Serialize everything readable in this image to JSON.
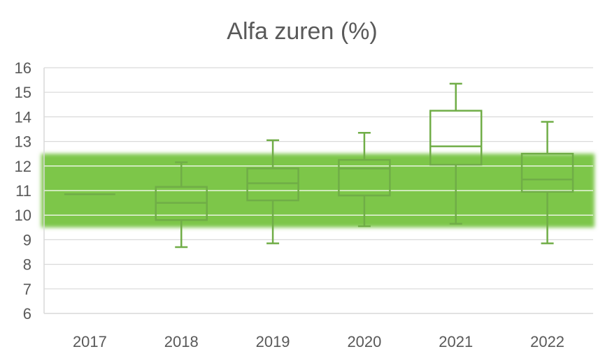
{
  "chart_data": {
    "type": "box",
    "title": "Alfa zuren (%)",
    "xlabel": "",
    "ylabel": "",
    "ylim": [
      6,
      16
    ],
    "yticks": [
      6,
      7,
      8,
      9,
      10,
      11,
      12,
      13,
      14,
      15,
      16
    ],
    "grid": true,
    "reference_band": {
      "low": 9.5,
      "high": 12.5,
      "color": "#7dc64a"
    },
    "box_color": "#70ad47",
    "categories": [
      "2017",
      "2018",
      "2019",
      "2020",
      "2021",
      "2022"
    ],
    "boxes": [
      {
        "min": 10.85,
        "q1": 10.85,
        "median": 10.85,
        "q3": 10.85,
        "max": 10.85
      },
      {
        "min": 8.7,
        "q1": 9.8,
        "median": 10.5,
        "q3": 11.15,
        "max": 12.15
      },
      {
        "min": 8.85,
        "q1": 10.6,
        "median": 11.3,
        "q3": 11.9,
        "max": 13.05
      },
      {
        "min": 9.55,
        "q1": 10.8,
        "median": 11.9,
        "q3": 12.25,
        "max": 13.35
      },
      {
        "min": 9.65,
        "q1": 12.05,
        "median": 12.8,
        "q3": 14.25,
        "max": 15.35
      },
      {
        "min": 8.85,
        "q1": 10.95,
        "median": 11.45,
        "q3": 12.5,
        "max": 13.8
      }
    ]
  }
}
